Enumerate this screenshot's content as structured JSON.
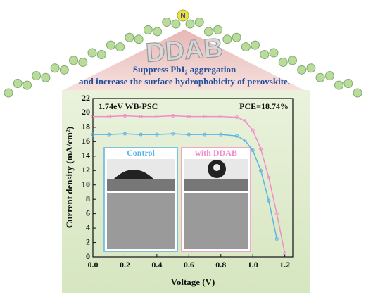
{
  "header": {
    "molecule": "DDAB",
    "atom": "N",
    "line1": "Suppress PbI₂ aggregation",
    "line2": "and increase the surface hydrophobicity of perovskite."
  },
  "chart_data": {
    "type": "line",
    "x_label": "Voltage (V)",
    "y_label": "Current density (mA/cm²)",
    "annotations": [
      "1.74eV WB-PSC",
      "PCE=18.74%"
    ],
    "x": [
      0,
      0.1,
      0.2,
      0.3,
      0.4,
      0.5,
      0.6,
      0.7,
      0.8,
      0.9,
      0.95,
      1.0,
      1.05,
      1.1,
      1.15,
      1.2
    ],
    "series": [
      {
        "name": "Control",
        "color": "#5ab4e6",
        "values": [
          17.0,
          17.0,
          17.1,
          17.0,
          17.0,
          17.1,
          17.0,
          17.0,
          17.0,
          16.8,
          16.2,
          14.8,
          12.0,
          7.8,
          2.5,
          null
        ]
      },
      {
        "name": "with DDAB",
        "color": "#f28cc9",
        "values": [
          19.5,
          19.5,
          19.6,
          19.5,
          19.5,
          19.6,
          19.5,
          19.5,
          19.5,
          19.4,
          18.9,
          17.6,
          15.0,
          11.0,
          6.0,
          0.5
        ]
      }
    ],
    "xlim": [
      0,
      1.25
    ],
    "ylim": [
      0,
      22
    ],
    "xticks": [
      {
        "value": 0,
        "label": "0.0"
      },
      {
        "value": 0.2,
        "label": "0.2"
      },
      {
        "value": 0.4,
        "label": "0.4"
      },
      {
        "value": 0.6,
        "label": "0.6"
      },
      {
        "value": 0.8,
        "label": "0.8"
      },
      {
        "value": 1.0,
        "label": "1.0"
      },
      {
        "value": 1.2,
        "label": "1.2"
      }
    ],
    "yticks": [
      0,
      2,
      4,
      6,
      8,
      10,
      12,
      14,
      16,
      18,
      20,
      22
    ]
  }
}
